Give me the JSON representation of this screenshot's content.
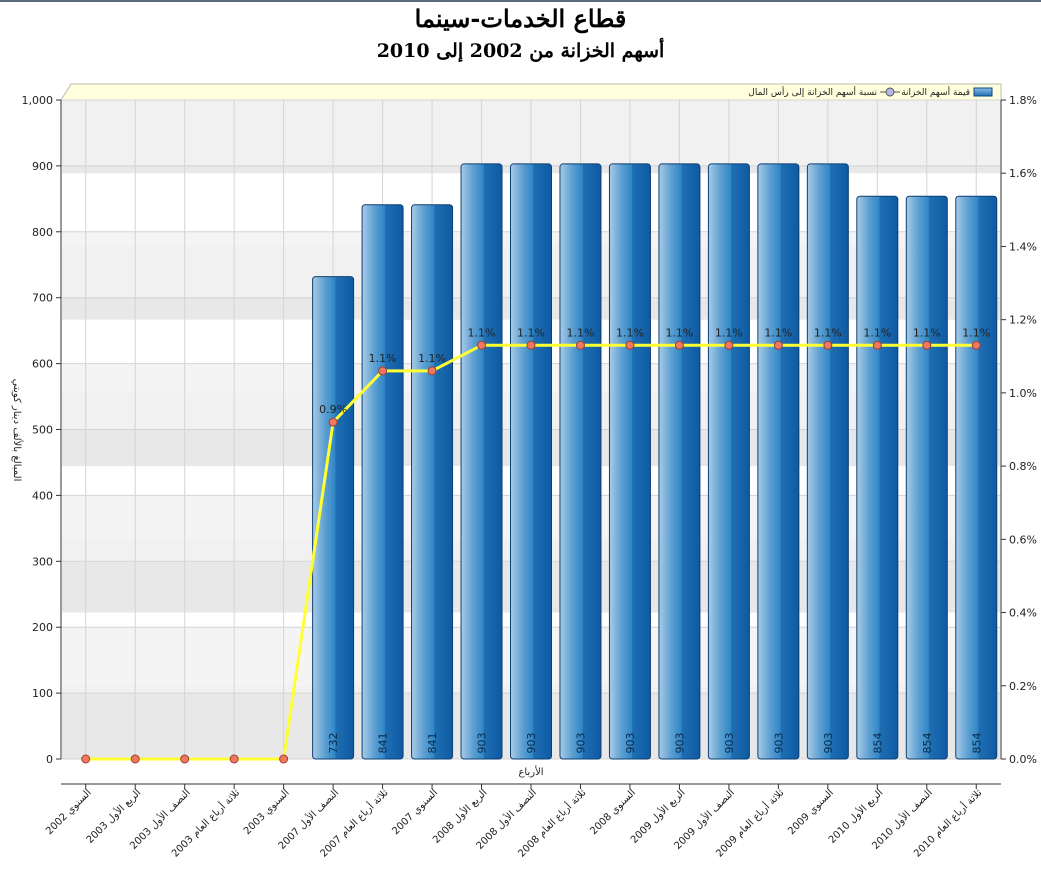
{
  "chart_data": {
    "type": "bar",
    "title": "قطاع الخدمات-سينما",
    "subtitle": "أسهم الخزانة من 2002 إلى 2010",
    "xlabel": "الأرباع",
    "ylabel": "المبالغ بالألف دينار كويتي",
    "ylim": [
      0,
      1000
    ],
    "y2lim": [
      0,
      1.8
    ],
    "y_ticks": [
      "0",
      "100",
      "200",
      "300",
      "400",
      "500",
      "600",
      "700",
      "800",
      "900",
      "1,000"
    ],
    "y2_ticks": [
      "0.0%",
      "0.2%",
      "0.4%",
      "0.6%",
      "0.8%",
      "1.0%",
      "1.2%",
      "1.4%",
      "1.6%",
      "1.8%"
    ],
    "categories": [
      "السنوي 2002",
      "الربع الأول 2003",
      "النصف الأول 2003",
      "ثلاثة أرباع العام 2003",
      "السنوي 2003",
      "النصف الأول 2007",
      "ثلاثة أرباع العام 2007",
      "السنوي 2007",
      "الربع الأول 2008",
      "النصف الأول 2008",
      "ثلاثة أرباع العام 2008",
      "السنوي 2008",
      "الربع الأول 2009",
      "النصف الأول 2009",
      "ثلاثة أرباع العام 2009",
      "السنوي 2009",
      "الربع الأول 2010",
      "النصف الأول 2010",
      "ثلاثة أرباع العام 2010"
    ],
    "series": [
      {
        "name": "قيمة أسهم الخزانة",
        "type": "bar",
        "axis": "left",
        "values": [
          0,
          0,
          0,
          0,
          0,
          732,
          841,
          841,
          903,
          903,
          903,
          903,
          903,
          903,
          903,
          903,
          854,
          854,
          854
        ],
        "labels": [
          "",
          "",
          "",
          "",
          "",
          "732",
          "841",
          "841",
          "903",
          "903",
          "903",
          "903",
          "903",
          "903",
          "903",
          "903",
          "854",
          "854",
          "854"
        ],
        "color": "#2f86c6"
      },
      {
        "name": "نسبة أسهم الخزانة إلى رأس المال",
        "type": "line",
        "axis": "right",
        "values": [
          0,
          0,
          0,
          0,
          0,
          0.92,
          1.06,
          1.06,
          1.13,
          1.13,
          1.13,
          1.13,
          1.13,
          1.13,
          1.13,
          1.13,
          1.13,
          1.13,
          1.13
        ],
        "labels": [
          "",
          "",
          "",
          "",
          "",
          "0.9%",
          "1.1%",
          "1.1%",
          "1.1%",
          "1.1%",
          "1.1%",
          "1.1%",
          "1.1%",
          "1.1%",
          "1.1%",
          "1.1%",
          "1.1%",
          "1.1%",
          "1.1%"
        ],
        "color": "#ffff33",
        "marker_color": "#f07860"
      }
    ],
    "legend": {
      "position": "top-right",
      "items": [
        "قيمة أسهم الخزانة",
        "نسبة أسهم الخزانة إلى رأس المال"
      ]
    },
    "grid": true
  }
}
